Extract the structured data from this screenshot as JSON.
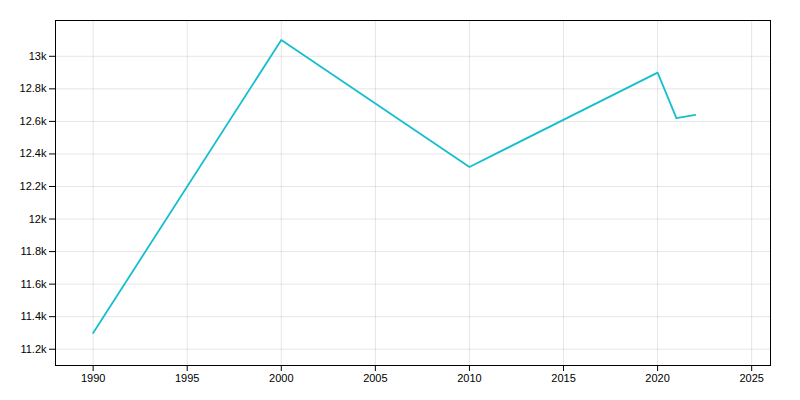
{
  "chart_data": {
    "type": "line",
    "x": [
      1990,
      2000,
      2010,
      2020,
      2021,
      2022
    ],
    "values": [
      11300,
      13100,
      12320,
      12900,
      12620,
      12640
    ],
    "color": "#17becf",
    "xlim": [
      1988,
      2026
    ],
    "ylim": [
      11100,
      13220
    ],
    "xticks": [
      1990,
      1995,
      2000,
      2005,
      2010,
      2015,
      2020,
      2025
    ],
    "yticks": [
      {
        "value": 11200,
        "label": "11.2k"
      },
      {
        "value": 11400,
        "label": "11.4k"
      },
      {
        "value": 11600,
        "label": "11.6k"
      },
      {
        "value": 11800,
        "label": "11.8k"
      },
      {
        "value": 12000,
        "label": "12k"
      },
      {
        "value": 12200,
        "label": "12.2k"
      },
      {
        "value": 12400,
        "label": "12.4k"
      },
      {
        "value": 12600,
        "label": "12.6k"
      },
      {
        "value": 12800,
        "label": "12.8k"
      },
      {
        "value": 13000,
        "label": "13k"
      }
    ],
    "grid": true
  }
}
